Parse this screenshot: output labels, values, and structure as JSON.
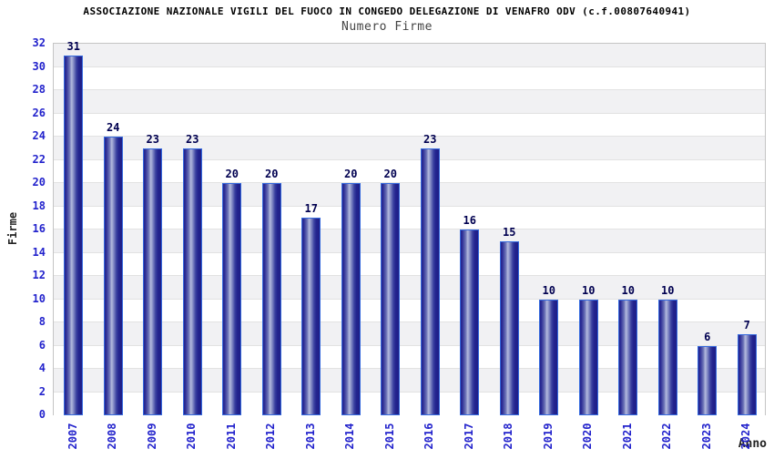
{
  "header": {
    "title": "ASSOCIAZIONE NAZIONALE VIGILI DEL FUOCO IN CONGEDO DELEGAZIONE DI VENAFRO ODV (c.f.00807640941)",
    "subtitle": "Numero Firme"
  },
  "chart_data": {
    "type": "bar",
    "title": "ASSOCIAZIONE NAZIONALE VIGILI DEL FUOCO IN CONGEDO DELEGAZIONE DI VENAFRO ODV (c.f.00807640941)",
    "subtitle": "Numero Firme",
    "categories": [
      "2007",
      "2008",
      "2009",
      "2010",
      "2011",
      "2012",
      "2013",
      "2014",
      "2015",
      "2016",
      "2017",
      "2018",
      "2019",
      "2020",
      "2021",
      "2022",
      "2023",
      "2024"
    ],
    "values": [
      31,
      24,
      23,
      23,
      20,
      20,
      17,
      20,
      20,
      23,
      16,
      15,
      10,
      10,
      10,
      10,
      6,
      7
    ],
    "xlabel": "Anno",
    "ylabel": "Firme",
    "ylim": [
      0,
      32
    ],
    "ytick_step": 2,
    "grid": "horizontal-alternating-bands",
    "legend_position": "none",
    "colors": {
      "tick_label": "#2222cc",
      "value_label": "#000050",
      "bar_border": "#3569dd",
      "bar_dark": "#23238e",
      "bar_light": "#b4bade",
      "band_gray": "#f1f1f3",
      "band_white": "#ffffff",
      "gridline": "#e2e2e2",
      "plot_border": "#c4c4c4",
      "title": "#000000",
      "subtitle": "#444444",
      "axis_title": "#222222"
    }
  }
}
